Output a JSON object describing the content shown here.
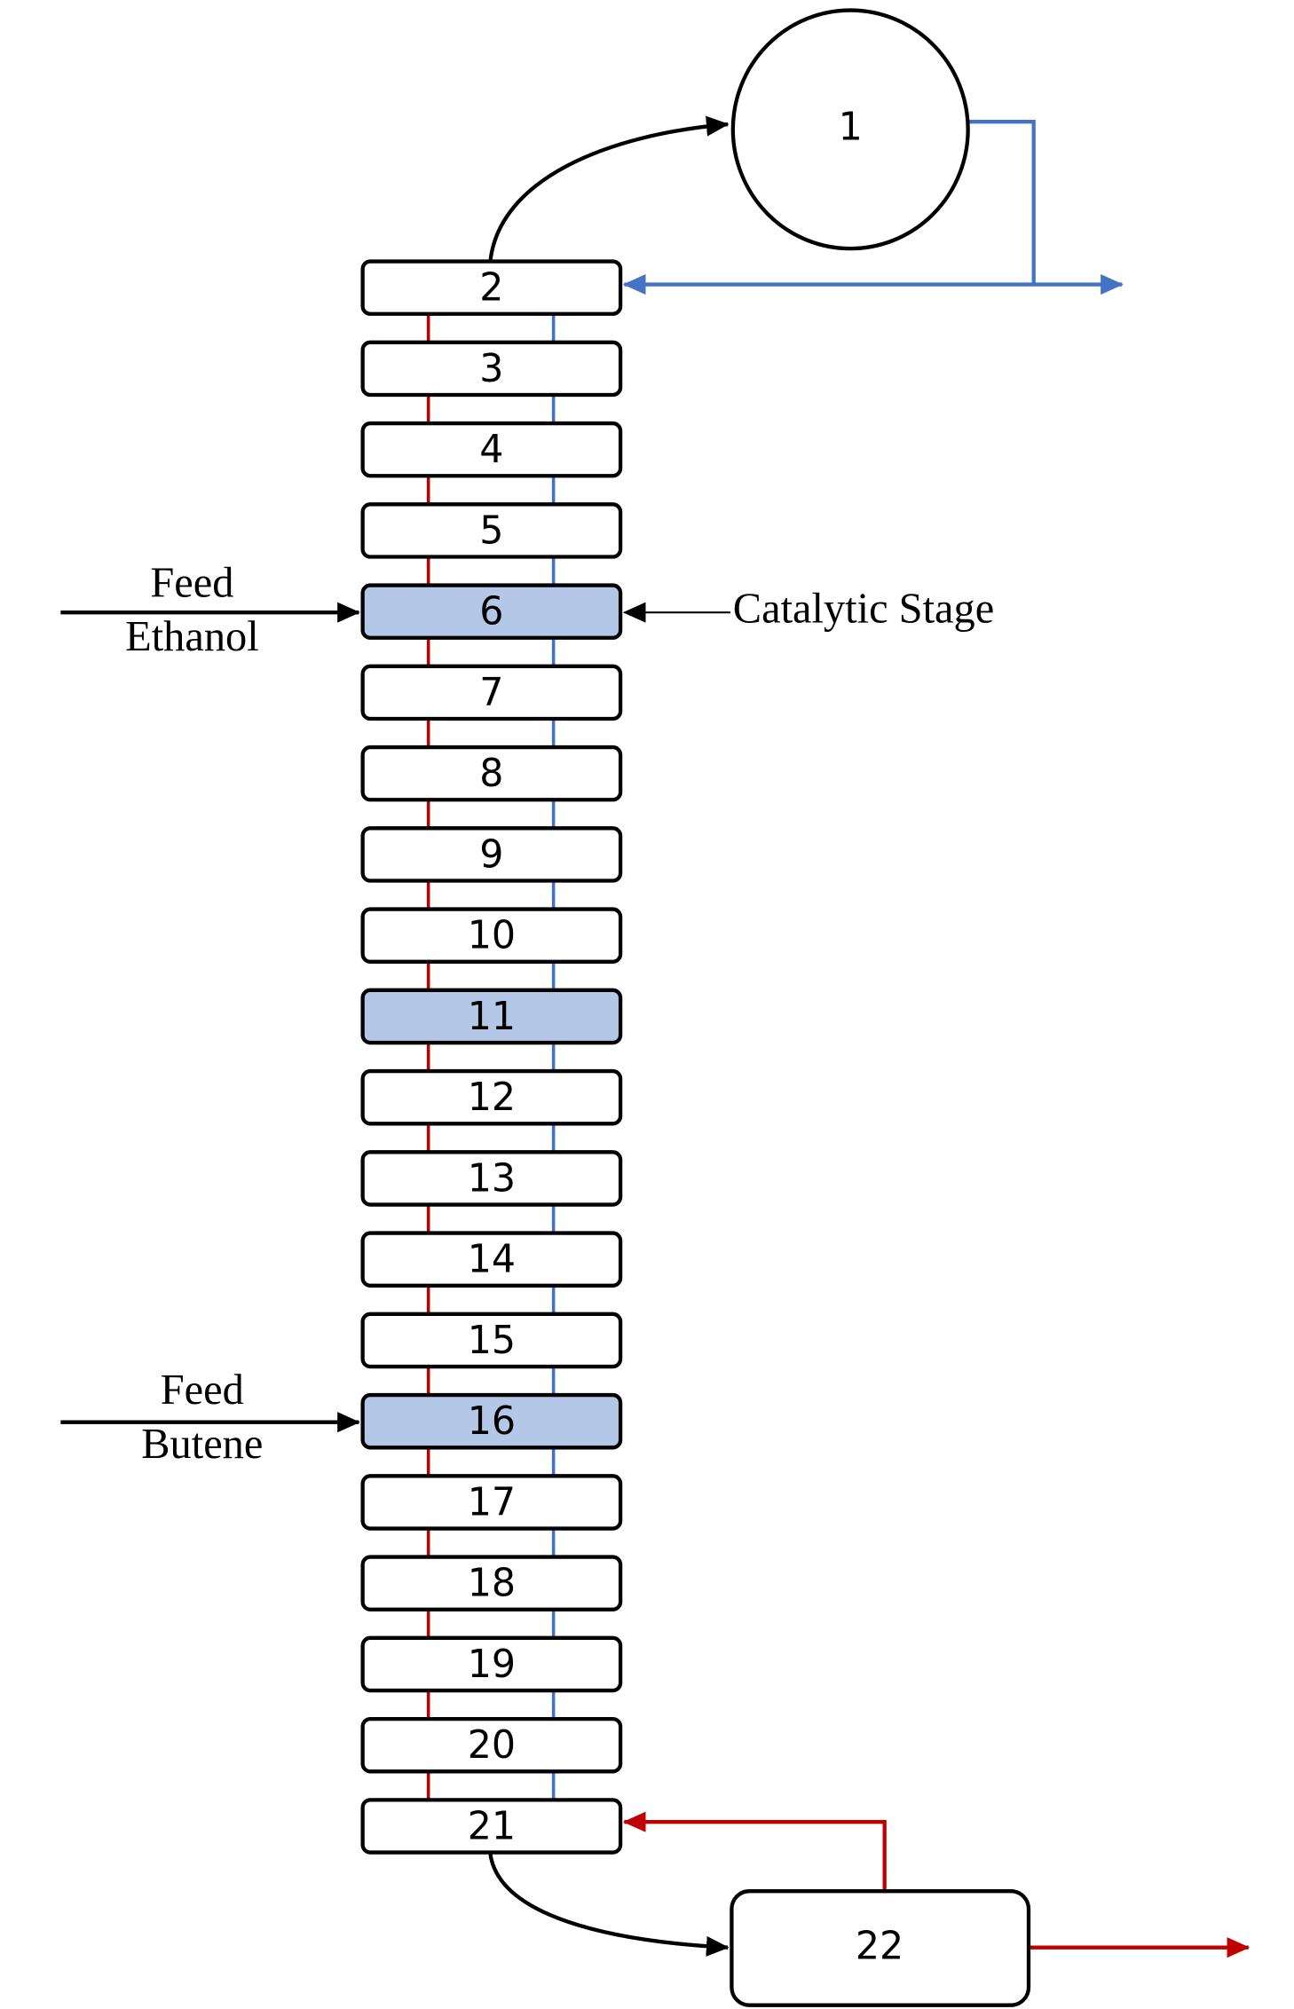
{
  "nodes": [
    {
      "label": "1"
    },
    {
      "label": "2"
    },
    {
      "label": "3"
    },
    {
      "label": "4"
    },
    {
      "label": "5"
    },
    {
      "label": "6",
      "highlight": true
    },
    {
      "label": "7"
    },
    {
      "label": "8"
    },
    {
      "label": "9"
    },
    {
      "label": "10"
    },
    {
      "label": "11",
      "highlight": true
    },
    {
      "label": "12"
    },
    {
      "label": "13"
    },
    {
      "label": "14"
    },
    {
      "label": "15"
    },
    {
      "label": "16",
      "highlight": true
    },
    {
      "label": "17"
    },
    {
      "label": "18"
    },
    {
      "label": "19"
    },
    {
      "label": "20"
    },
    {
      "label": "21"
    },
    {
      "label": "22"
    }
  ],
  "annotations": {
    "feed_ethanol": [
      "Feed",
      "Ethanol"
    ],
    "feed_butene": [
      "Feed",
      "Butene"
    ],
    "catalytic_stage": "Catalytic Stage"
  }
}
